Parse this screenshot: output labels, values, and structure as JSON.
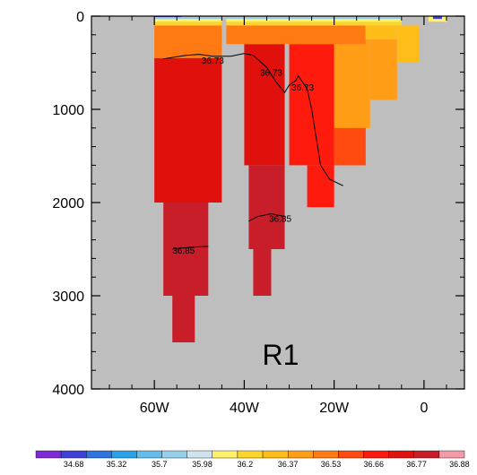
{
  "chart_data": {
    "type": "heatmap",
    "title": "",
    "xlabel": "",
    "ylabel": "",
    "x_axis": {
      "range": [
        -74,
        9
      ],
      "ticks": [
        {
          "value": -60,
          "label": "60W"
        },
        {
          "value": -40,
          "label": "40W"
        },
        {
          "value": -20,
          "label": "20W"
        },
        {
          "value": 0,
          "label": "0"
        }
      ]
    },
    "y_axis": {
      "range": [
        0,
        4000
      ],
      "reversed": true,
      "ticks": [
        {
          "value": 0,
          "label": "0"
        },
        {
          "value": 1000,
          "label": "1000"
        },
        {
          "value": 2000,
          "label": "2000"
        },
        {
          "value": 3000,
          "label": "3000"
        },
        {
          "value": 4000,
          "label": "4000"
        }
      ]
    },
    "background_color": "#bebebe",
    "panel_label": "R1",
    "colorbar": {
      "colors": [
        "#7e2ad6",
        "#4040d8",
        "#2f74e0",
        "#29a2ea",
        "#63bdea",
        "#96cfe8",
        "#cfe4ec",
        "#fff26a",
        "#ffd52a",
        "#ffbd1a",
        "#ff9e16",
        "#ff7a12",
        "#ff4a10",
        "#ff1a0e",
        "#e0100d",
        "#c81e2a",
        "#f29aa8"
      ],
      "labels": [
        "34.68",
        "35.32",
        "35.7",
        "35.98",
        "36.2",
        "36.37",
        "36.53",
        "36.66",
        "36.77",
        "36.88"
      ]
    },
    "cells": [
      {
        "x0": -60,
        "x1": -45,
        "z0": 450,
        "z1": 2000,
        "color": "#e0100d"
      },
      {
        "x0": -58,
        "x1": -48,
        "z0": 2000,
        "z1": 3000,
        "color": "#c81e2a"
      },
      {
        "x0": -56,
        "x1": -51,
        "z0": 3000,
        "z1": 3500,
        "color": "#c81e2a"
      },
      {
        "x0": -40,
        "x1": -31,
        "z0": 300,
        "z1": 1600,
        "color": "#e0100d"
      },
      {
        "x0": -39,
        "x1": -31,
        "z0": 1600,
        "z1": 2500,
        "color": "#c81e2a"
      },
      {
        "x0": -38,
        "x1": -34,
        "z0": 2500,
        "z1": 3000,
        "color": "#c81e2a"
      },
      {
        "x0": -30,
        "x1": -20,
        "z0": 300,
        "z1": 1600,
        "color": "#ff1a0e"
      },
      {
        "x0": -26,
        "x1": -20,
        "z0": 1600,
        "z1": 2050,
        "color": "#ff1a0e"
      },
      {
        "x0": -20,
        "x1": -13,
        "z0": 300,
        "z1": 1600,
        "color": "#ff4a10"
      },
      {
        "x0": -20,
        "x1": -13,
        "z0": 1000,
        "z1": 1600,
        "color": "#ff4a10"
      },
      {
        "x0": -20,
        "x1": -12,
        "z0": 250,
        "z1": 1200,
        "color": "#ff9e16"
      },
      {
        "x0": -12,
        "x1": -6,
        "z0": 250,
        "z1": 900,
        "color": "#ff9e16"
      },
      {
        "x0": -6,
        "x1": -1,
        "z0": 100,
        "z1": 500,
        "color": "#ffbd1a"
      },
      {
        "x0": -60,
        "x1": -45,
        "z0": 100,
        "z1": 450,
        "color": "#ff7a12"
      },
      {
        "x0": -44,
        "x1": -31,
        "z0": 100,
        "z1": 300,
        "color": "#ff7a12"
      },
      {
        "x0": -31,
        "x1": -13,
        "z0": 100,
        "z1": 300,
        "color": "#ff7a12"
      },
      {
        "x0": -13,
        "x1": -6,
        "z0": 100,
        "z1": 250,
        "color": "#ffbd1a"
      },
      {
        "x0": -60,
        "x1": -45,
        "z0": 60,
        "z1": 100,
        "color": "#ffd52a"
      },
      {
        "x0": -44,
        "x1": -5,
        "z0": 60,
        "z1": 100,
        "color": "#ffd52a"
      },
      {
        "x0": -60,
        "x1": -45,
        "z0": 30,
        "z1": 60,
        "color": "#fff26a"
      },
      {
        "x0": -44,
        "x1": -5,
        "z0": 30,
        "z1": 60,
        "color": "#fff26a"
      },
      {
        "x0": -60,
        "x1": -45,
        "z0": 10,
        "z1": 30,
        "color": "#96cfe8"
      },
      {
        "x0": -44,
        "x1": -5,
        "z0": 10,
        "z1": 30,
        "color": "#96cfe8"
      },
      {
        "x0": -60,
        "x1": -54,
        "z0": 0,
        "z1": 10,
        "color": "#4040d8"
      },
      {
        "x0": 1,
        "x1": 5,
        "z0": 0,
        "z1": 60,
        "color": "#fff26a"
      },
      {
        "x0": 2,
        "x1": 4,
        "z0": 0,
        "z1": 30,
        "color": "#4040d8"
      }
    ],
    "contours": [
      {
        "label": "36.73",
        "points": [
          [
            -58,
            460
          ],
          [
            -53,
            420
          ],
          [
            -50,
            410
          ],
          [
            -47,
            430
          ],
          [
            -43,
            430
          ],
          [
            -40,
            400
          ],
          [
            -38,
            420
          ],
          [
            -35,
            550
          ],
          [
            -33,
            700
          ],
          [
            -31,
            820
          ],
          [
            -30,
            740
          ],
          [
            -28.5,
            690
          ],
          [
            -28,
            640
          ],
          [
            -26,
            780
          ],
          [
            -25,
            1000
          ],
          [
            -24,
            1300
          ],
          [
            -23,
            1600
          ],
          [
            -21,
            1750
          ],
          [
            -18,
            1820
          ]
        ]
      },
      {
        "label": "36.85",
        "points": [
          [
            -39,
            2200
          ],
          [
            -37,
            2150
          ],
          [
            -34,
            2120
          ],
          [
            -31,
            2150
          ]
        ]
      },
      {
        "label": "36.85",
        "points": [
          [
            -56,
            2500
          ],
          [
            -52,
            2480
          ],
          [
            -48,
            2470
          ]
        ]
      }
    ],
    "contour_labels": [
      {
        "text": "36.73",
        "x": -47,
        "z": 470
      },
      {
        "text": "36.73",
        "x": -34,
        "z": 600
      },
      {
        "text": "36.73",
        "x": -27,
        "z": 760
      },
      {
        "text": "36.85",
        "x": -32,
        "z": 2170
      },
      {
        "text": "36.85",
        "x": -53.5,
        "z": 2510
      }
    ]
  }
}
